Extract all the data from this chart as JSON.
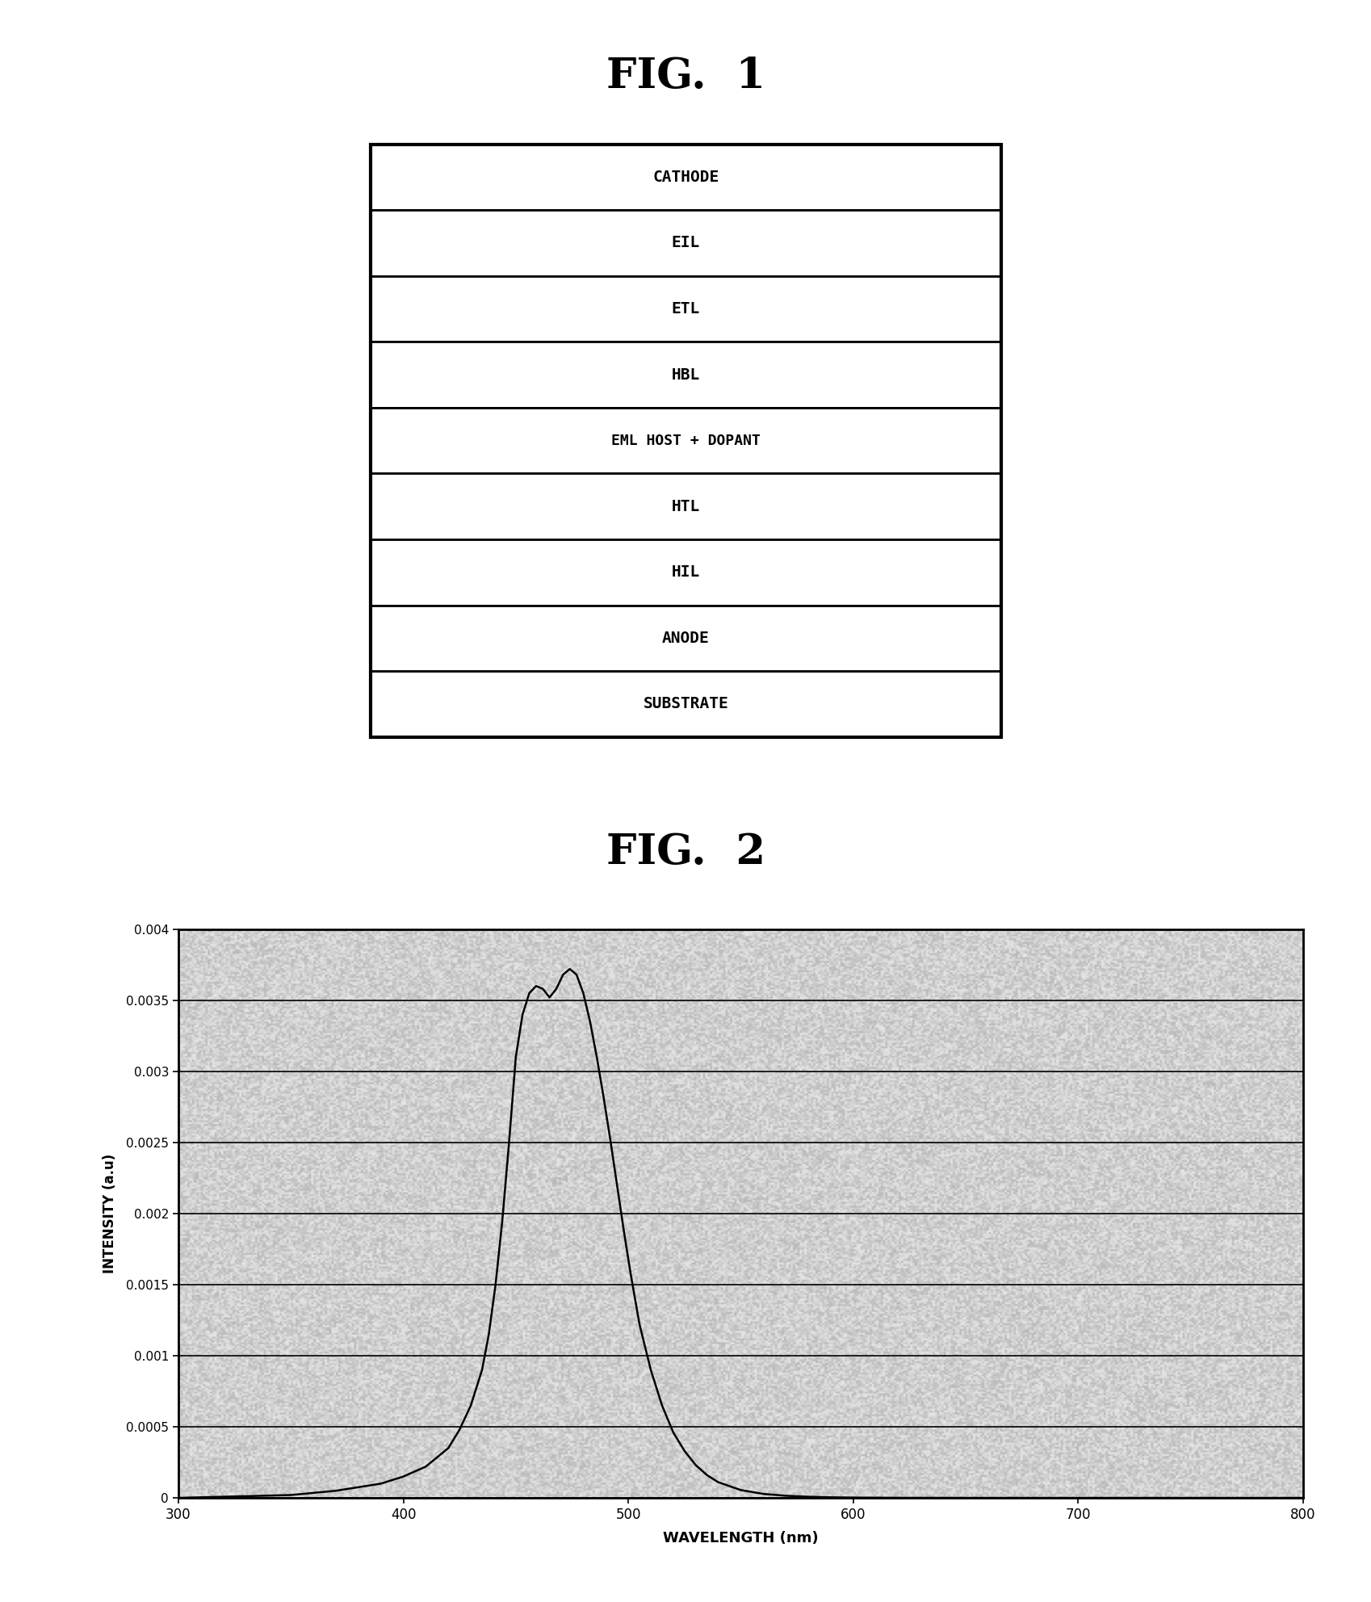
{
  "fig1_title": "FIG.  1",
  "fig2_title": "FIG.  2",
  "layers": [
    "CATHODE",
    "EIL",
    "ETL",
    "HBL",
    "EML HOST + DOPANT",
    "HTL",
    "HIL",
    "ANODE",
    "SUBSTRATE"
  ],
  "ylabel": "INTENSITY (a.u)",
  "xlabel": "WAVELENGTH (nm)",
  "xlim": [
    300,
    800
  ],
  "ylim": [
    0,
    0.004
  ],
  "xticks": [
    300,
    400,
    500,
    600,
    700,
    800
  ],
  "yticks": [
    0,
    0.0005,
    0.001,
    0.0015,
    0.002,
    0.0025,
    0.003,
    0.0035,
    0.004
  ],
  "ytick_labels": [
    "0",
    "0.0005",
    "0.001",
    "0.0015",
    "0.002",
    "0.0025",
    "0.003",
    "0.0035",
    "0.004"
  ],
  "curve_x": [
    300,
    350,
    370,
    390,
    400,
    410,
    420,
    425,
    430,
    435,
    438,
    441,
    444,
    447,
    450,
    453,
    456,
    459,
    462,
    465,
    468,
    471,
    474,
    477,
    480,
    483,
    486,
    489,
    492,
    495,
    498,
    501,
    505,
    510,
    515,
    520,
    525,
    530,
    535,
    540,
    550,
    560,
    570,
    580,
    590,
    600,
    620,
    650,
    700,
    750,
    800
  ],
  "curve_y": [
    0.0,
    2e-05,
    5e-05,
    0.0001,
    0.00015,
    0.00022,
    0.00035,
    0.00048,
    0.00065,
    0.0009,
    0.00115,
    0.0015,
    0.00195,
    0.0025,
    0.0031,
    0.0034,
    0.00355,
    0.0036,
    0.00358,
    0.00352,
    0.00358,
    0.00368,
    0.00372,
    0.00368,
    0.00355,
    0.00335,
    0.0031,
    0.00282,
    0.00252,
    0.0022,
    0.00188,
    0.00158,
    0.00122,
    0.0009,
    0.00065,
    0.00046,
    0.00033,
    0.00023,
    0.00016,
    0.00011,
    5.5e-05,
    2.8e-05,
    1.5e-05,
    8e-06,
    4e-06,
    2e-06,
    5e-07,
    0.0,
    0.0,
    0.0,
    0.0
  ],
  "background_color": "#ffffff",
  "plot_bg_color": "#b8b8b8",
  "noise_seed": 42,
  "noise_alpha": 0.35
}
